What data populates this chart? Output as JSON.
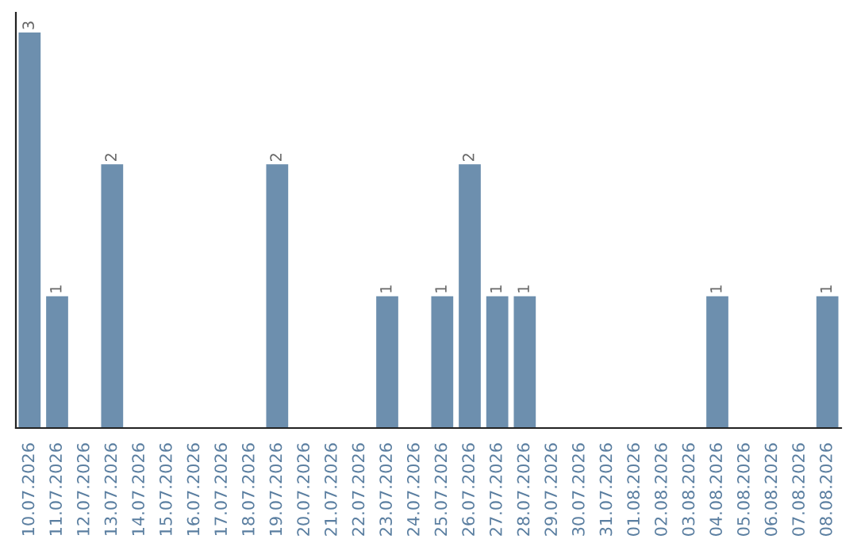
{
  "chart_data": {
    "type": "bar",
    "categories": [
      "10.07.2026",
      "11.07.2026",
      "12.07.2026",
      "13.07.2026",
      "14.07.2026",
      "15.07.2026",
      "16.07.2026",
      "17.07.2026",
      "18.07.2026",
      "19.07.2026",
      "20.07.2026",
      "21.07.2026",
      "22.07.2026",
      "23.07.2026",
      "24.07.2026",
      "25.07.2026",
      "26.07.2026",
      "27.07.2026",
      "28.07.2026",
      "29.07.2026",
      "30.07.2026",
      "31.07.2026",
      "01.08.2026",
      "02.08.2026",
      "03.08.2026",
      "04.08.2026",
      "05.08.2026",
      "06.08.2026",
      "07.08.2026",
      "08.08.2026"
    ],
    "values": [
      3,
      1,
      0,
      2,
      0,
      0,
      0,
      0,
      0,
      2,
      0,
      0,
      0,
      1,
      0,
      1,
      2,
      1,
      1,
      0,
      0,
      0,
      0,
      0,
      0,
      1,
      0,
      0,
      0,
      1
    ],
    "value_labels": [
      "3",
      "1",
      null,
      "2",
      null,
      null,
      null,
      null,
      null,
      "2",
      null,
      null,
      null,
      "1",
      null,
      "1",
      "2",
      "1",
      "1",
      null,
      null,
      null,
      null,
      null,
      null,
      "1",
      null,
      null,
      null,
      "1"
    ],
    "color": "#6d8fae",
    "tick_labels": "x",
    "grid": false,
    "legend": false
  }
}
